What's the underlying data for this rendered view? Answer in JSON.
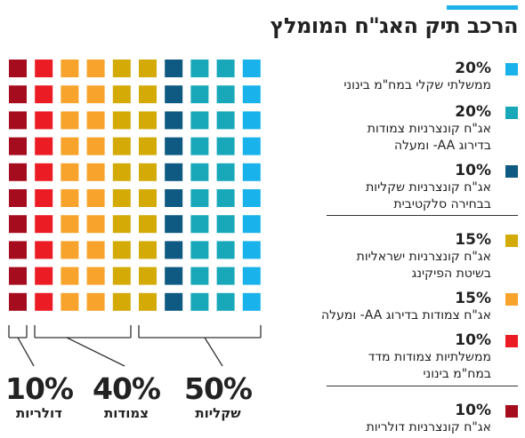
{
  "title": "הרכב תיק האג\"ח המומלץ",
  "colors": {
    "accent": "#1fb1ea",
    "gov_shekel_avg": "#1ab2eb",
    "corp_cpi_aa": "#18a8ba",
    "corp_shekel_selective": "#0e5a82",
    "corp_israeli_pickup": "#d4aa07",
    "cpi_aa": "#f7a32c",
    "gov_cpi_avg": "#ec1c24",
    "corp_dollar": "#a50d1f"
  },
  "legend": [
    {
      "pct": "20%",
      "label": [
        "ממשלתי שקלי במח\"מ בינוני"
      ],
      "color": "#1ab2eb"
    },
    {
      "pct": "20%",
      "label": [
        "אג\"ח קונצרניות צמודות",
        "בדירוג AA- ומעלה"
      ],
      "color": "#18a8ba"
    },
    {
      "pct": "10%",
      "label": [
        "אג\"ח קונצרניות שקליות",
        "בבחירה סלקטיבית"
      ],
      "color": "#0e5a82"
    },
    {
      "pct": "15%",
      "label": [
        "אג\"ח קונצרניות ישראליות",
        "בשיטת הפיקינג"
      ],
      "color": "#d4aa07"
    },
    {
      "pct": "15%",
      "label": [
        "אג\"ח צמודות בדירוג AA- ומעלה"
      ],
      "color": "#f7a32c"
    },
    {
      "pct": "10%",
      "label": [
        "ממשלתיות צמודות מדד",
        "במח\"מ בינוני"
      ],
      "color": "#ec1c24"
    },
    {
      "pct": "10%",
      "label": [
        "אג\"ח קונצרניות דולריות"
      ],
      "color": "#a50d1f"
    }
  ],
  "groups": [
    {
      "pct": "50%",
      "label": "שקליות"
    },
    {
      "pct": "40%",
      "label": "צמודות"
    },
    {
      "pct": "10%",
      "label": "דולריות"
    }
  ],
  "chart_data": {
    "type": "waffle",
    "title": "הרכב תיק האג\"ח המומלץ",
    "unit": "%",
    "grid": {
      "columns": 10,
      "rows": 10
    },
    "series": [
      {
        "name": "אג\"ח קונצרניות דולריות",
        "value": 10,
        "color": "#a50d1f",
        "group": "דולריות"
      },
      {
        "name": "ממשלתיות צמודות מדד במח\"מ בינוני",
        "value": 10,
        "color": "#ec1c24",
        "group": "צמודות"
      },
      {
        "name": "אג\"ח צמודות בדירוג AA- ומעלה",
        "value": 15,
        "color": "#f7a32c",
        "group": "צמודות"
      },
      {
        "name": "אג\"ח קונצרניות ישראליות בשיטת הפיקינג",
        "value": 15,
        "color": "#d4aa07",
        "group": "צמודות"
      },
      {
        "name": "אג\"ח קונצרניות שקליות בבחירה סלקטיבית",
        "value": 10,
        "color": "#0e5a82",
        "group": "שקליות"
      },
      {
        "name": "אג\"ח קונצרניות צמודות בדירוג AA- ומעלה",
        "value": 20,
        "color": "#18a8ba",
        "group": "שקליות"
      },
      {
        "name": "ממשלתי שקלי במח\"מ בינוני",
        "value": 20,
        "color": "#1ab2eb",
        "group": "שקליות"
      }
    ],
    "groups": [
      {
        "name": "דולריות",
        "value": 10
      },
      {
        "name": "צמודות",
        "value": 40
      },
      {
        "name": "שקליות",
        "value": 50
      }
    ]
  }
}
